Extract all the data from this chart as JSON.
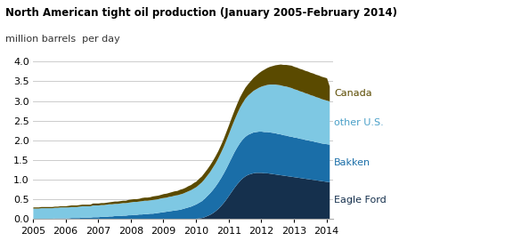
{
  "title": "North American tight oil production (January 2005-February 2014)",
  "subtitle": "million barrels  per day",
  "background_color": "#ffffff",
  "grid_color": "#cccccc",
  "colors": {
    "eagle_ford": "#15304d",
    "bakken": "#1a6ea8",
    "other_us": "#7ec8e3",
    "canada": "#5a4a00"
  },
  "label_colors": {
    "canada": "#5a4a00",
    "other_us": "#4aa0c8",
    "bakken": "#1a6ea8",
    "eagle_ford": "#15304d"
  },
  "ylim": [
    0.0,
    4.0
  ],
  "yticks": [
    0.0,
    0.5,
    1.0,
    1.5,
    2.0,
    2.5,
    3.0,
    3.5,
    4.0
  ],
  "start_year": 2005,
  "n_months": 110,
  "eagle_ford": [
    0.0,
    0.0,
    0.0,
    0.0,
    0.0,
    0.0,
    0.0,
    0.0,
    0.0,
    0.0,
    0.0,
    0.0,
    0.0,
    0.0,
    0.0,
    0.0,
    0.0,
    0.0,
    0.0,
    0.0,
    0.0,
    0.0,
    0.0,
    0.0,
    0.0,
    0.0,
    0.0,
    0.0,
    0.0,
    0.0,
    0.0,
    0.0,
    0.0,
    0.0,
    0.0,
    0.0,
    0.0,
    0.0,
    0.0,
    0.0,
    0.0,
    0.0,
    0.0,
    0.0,
    0.0,
    0.0,
    0.0,
    0.0,
    0.0,
    0.0,
    0.0,
    0.0,
    0.0,
    0.0,
    0.0,
    0.0,
    0.0,
    0.0,
    0.0,
    0.0,
    0.01,
    0.02,
    0.03,
    0.05,
    0.08,
    0.11,
    0.15,
    0.2,
    0.26,
    0.33,
    0.41,
    0.5,
    0.6,
    0.7,
    0.8,
    0.89,
    0.97,
    1.04,
    1.09,
    1.13,
    1.15,
    1.17,
    1.18,
    1.18,
    1.18,
    1.17,
    1.17,
    1.16,
    1.15,
    1.14,
    1.13,
    1.12,
    1.11,
    1.1,
    1.09,
    1.08,
    1.07,
    1.06,
    1.05,
    1.04,
    1.03,
    1.02,
    1.01,
    1.0,
    0.99,
    0.98,
    0.97,
    0.96,
    0.95,
    0.94
  ],
  "bakken": [
    0.01,
    0.01,
    0.01,
    0.01,
    0.01,
    0.01,
    0.01,
    0.01,
    0.02,
    0.02,
    0.02,
    0.02,
    0.02,
    0.02,
    0.03,
    0.03,
    0.03,
    0.03,
    0.04,
    0.04,
    0.04,
    0.04,
    0.05,
    0.05,
    0.05,
    0.06,
    0.06,
    0.06,
    0.07,
    0.07,
    0.08,
    0.08,
    0.08,
    0.09,
    0.09,
    0.1,
    0.1,
    0.11,
    0.11,
    0.12,
    0.12,
    0.13,
    0.13,
    0.14,
    0.14,
    0.15,
    0.16,
    0.17,
    0.18,
    0.19,
    0.2,
    0.21,
    0.22,
    0.23,
    0.24,
    0.26,
    0.28,
    0.3,
    0.32,
    0.35,
    0.37,
    0.4,
    0.43,
    0.47,
    0.51,
    0.55,
    0.59,
    0.63,
    0.67,
    0.71,
    0.75,
    0.79,
    0.83,
    0.87,
    0.91,
    0.94,
    0.97,
    0.99,
    1.01,
    1.02,
    1.03,
    1.04,
    1.04,
    1.05,
    1.05,
    1.05,
    1.05,
    1.05,
    1.05,
    1.05,
    1.04,
    1.04,
    1.03,
    1.03,
    1.02,
    1.02,
    1.01,
    1.01,
    1.0,
    1.0,
    0.99,
    0.99,
    0.98,
    0.98,
    0.97,
    0.97,
    0.96,
    0.96,
    0.96,
    0.96
  ],
  "other_us": [
    0.26,
    0.26,
    0.26,
    0.27,
    0.27,
    0.27,
    0.27,
    0.27,
    0.27,
    0.27,
    0.28,
    0.28,
    0.28,
    0.28,
    0.28,
    0.28,
    0.28,
    0.29,
    0.29,
    0.29,
    0.29,
    0.29,
    0.3,
    0.3,
    0.3,
    0.3,
    0.3,
    0.31,
    0.31,
    0.31,
    0.31,
    0.31,
    0.32,
    0.32,
    0.32,
    0.32,
    0.33,
    0.33,
    0.33,
    0.33,
    0.34,
    0.34,
    0.34,
    0.34,
    0.35,
    0.35,
    0.35,
    0.36,
    0.36,
    0.36,
    0.37,
    0.37,
    0.38,
    0.38,
    0.39,
    0.39,
    0.4,
    0.41,
    0.42,
    0.43,
    0.44,
    0.46,
    0.48,
    0.5,
    0.52,
    0.54,
    0.57,
    0.59,
    0.62,
    0.65,
    0.68,
    0.72,
    0.75,
    0.79,
    0.82,
    0.86,
    0.9,
    0.93,
    0.97,
    1.0,
    1.03,
    1.06,
    1.09,
    1.12,
    1.15,
    1.18,
    1.2,
    1.22,
    1.23,
    1.24,
    1.25,
    1.25,
    1.25,
    1.25,
    1.25,
    1.24,
    1.23,
    1.22,
    1.21,
    1.2,
    1.19,
    1.18,
    1.17,
    1.16,
    1.15,
    1.14,
    1.13,
    1.12,
    1.11,
    1.1
  ],
  "canada": [
    0.03,
    0.03,
    0.03,
    0.03,
    0.03,
    0.03,
    0.03,
    0.03,
    0.03,
    0.03,
    0.03,
    0.03,
    0.03,
    0.04,
    0.04,
    0.04,
    0.04,
    0.04,
    0.04,
    0.04,
    0.04,
    0.04,
    0.05,
    0.05,
    0.05,
    0.05,
    0.05,
    0.05,
    0.05,
    0.06,
    0.06,
    0.06,
    0.06,
    0.06,
    0.06,
    0.07,
    0.07,
    0.07,
    0.07,
    0.07,
    0.08,
    0.08,
    0.08,
    0.08,
    0.09,
    0.09,
    0.09,
    0.09,
    0.1,
    0.1,
    0.1,
    0.11,
    0.11,
    0.11,
    0.12,
    0.12,
    0.12,
    0.13,
    0.13,
    0.14,
    0.14,
    0.15,
    0.15,
    0.16,
    0.16,
    0.17,
    0.17,
    0.18,
    0.18,
    0.19,
    0.2,
    0.21,
    0.22,
    0.23,
    0.24,
    0.25,
    0.26,
    0.27,
    0.28,
    0.29,
    0.31,
    0.33,
    0.35,
    0.37,
    0.39,
    0.41,
    0.43,
    0.45,
    0.47,
    0.49,
    0.51,
    0.53,
    0.54,
    0.55,
    0.56,
    0.57,
    0.57,
    0.57,
    0.57,
    0.57,
    0.57,
    0.57,
    0.57,
    0.57,
    0.57,
    0.57,
    0.57,
    0.57,
    0.57,
    0.38
  ]
}
